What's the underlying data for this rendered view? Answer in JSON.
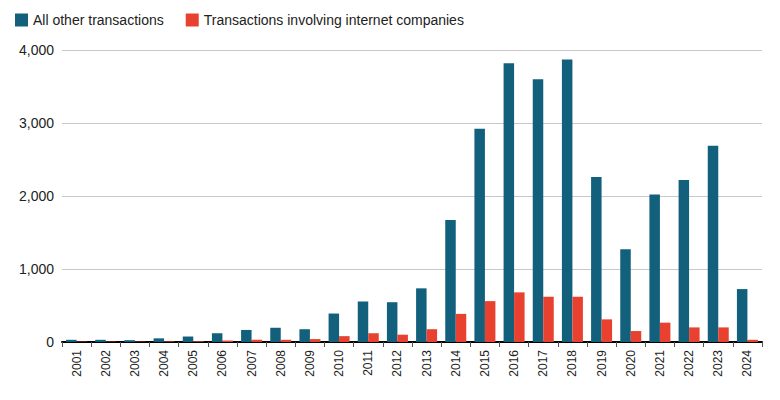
{
  "chart_data": {
    "type": "bar",
    "categories": [
      "2001",
      "2002",
      "2003",
      "2004",
      "2005",
      "2006",
      "2007",
      "2008",
      "2009",
      "2010",
      "2011",
      "2012",
      "2013",
      "2014",
      "2015",
      "2016",
      "2017",
      "2018",
      "2019",
      "2020",
      "2021",
      "2022",
      "2023",
      "2024"
    ],
    "series": [
      {
        "name": "All other transactions",
        "color": "#13607c",
        "values": [
          30,
          30,
          25,
          50,
          75,
          120,
          165,
          195,
          175,
          390,
          555,
          545,
          735,
          1670,
          2920,
          3820,
          3600,
          3870,
          2260,
          1270,
          2020,
          2220,
          2690,
          725
        ]
      },
      {
        "name": "Transactions involving internet companies",
        "color": "#e8412f",
        "values": [
          5,
          5,
          5,
          8,
          10,
          20,
          30,
          30,
          40,
          80,
          120,
          100,
          175,
          385,
          560,
          680,
          620,
          620,
          310,
          150,
          265,
          200,
          200,
          30
        ]
      }
    ],
    "ylim": [
      0,
      4000
    ],
    "yticks": [
      0,
      {
        "value": 1000,
        "label": "1,000"
      },
      {
        "value": 2000,
        "label": "2,000"
      },
      {
        "value": 3000,
        "label": "3,000"
      },
      {
        "value": 4000,
        "label": "4,000"
      }
    ],
    "grid": true,
    "legend": "top-left"
  }
}
